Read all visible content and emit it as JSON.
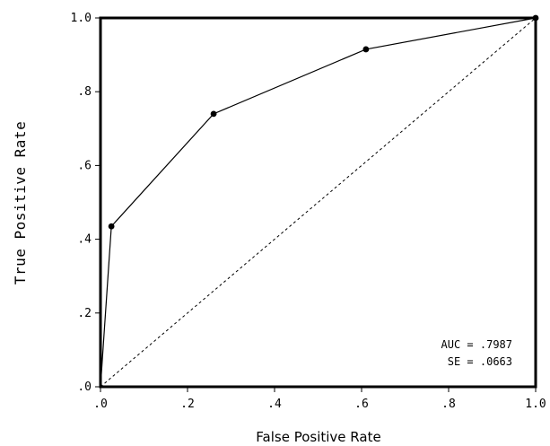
{
  "chart_data": {
    "type": "line",
    "title": "",
    "xlabel": "False Positive Rate",
    "ylabel": "True Positive Rate",
    "xlim": [
      0,
      1
    ],
    "ylim": [
      0,
      1
    ],
    "x_ticks": [
      {
        "value": 0.0,
        "label": ".0"
      },
      {
        "value": 0.2,
        "label": ".2"
      },
      {
        "value": 0.4,
        "label": ".4"
      },
      {
        "value": 0.6,
        "label": ".6"
      },
      {
        "value": 0.8,
        "label": ".8"
      },
      {
        "value": 1.0,
        "label": "1.0"
      }
    ],
    "y_ticks": [
      {
        "value": 0.0,
        "label": ".0"
      },
      {
        "value": 0.2,
        "label": ".2"
      },
      {
        "value": 0.4,
        "label": ".4"
      },
      {
        "value": 0.6,
        "label": ".6"
      },
      {
        "value": 0.8,
        "label": ".8"
      },
      {
        "value": 1.0,
        "label": "1.0"
      }
    ],
    "grid": false,
    "series": [
      {
        "x": [
          0.0,
          0.025,
          0.26,
          0.61,
          1.0
        ],
        "y": [
          0.0,
          0.435,
          0.74,
          0.915,
          1.0
        ],
        "markers": [
          false,
          true,
          true,
          true,
          true
        ],
        "style": "solid",
        "color": "#000000"
      },
      {
        "x": [
          0.0,
          1.0
        ],
        "y": [
          0.0,
          1.0
        ],
        "style": "dashed",
        "color": "#000000"
      }
    ],
    "annotations": [
      {
        "text": "AUC = .7987",
        "position": "bottom-right"
      },
      {
        "text": "SE = .0663",
        "position": "bottom-right"
      }
    ]
  }
}
